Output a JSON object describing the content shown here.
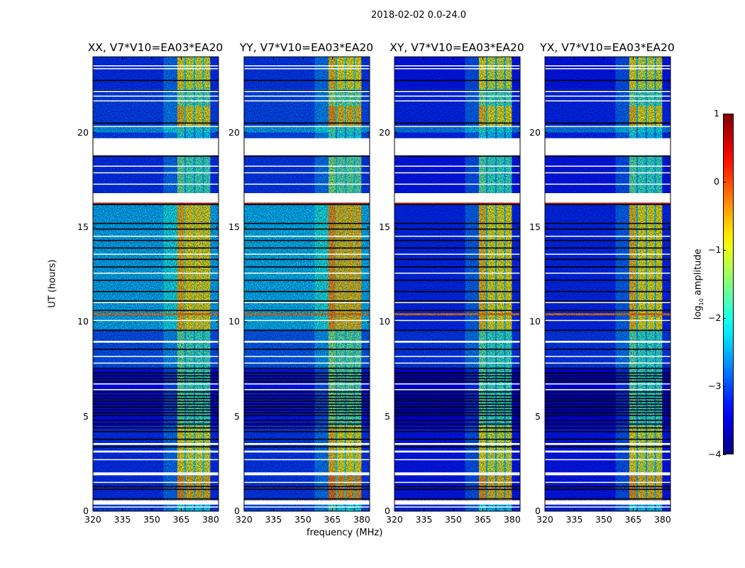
{
  "chart_data": {
    "type": "heatmap",
    "suptitle": "2018-02-02 0.0-24.0",
    "xlabel": "frequency (MHz)",
    "ylabel": "UT (hours)",
    "xlim": [
      320,
      384
    ],
    "ylim": [
      0,
      24
    ],
    "xticks": [
      "320",
      "335",
      "350",
      "365",
      "380"
    ],
    "xtick_values": [
      320,
      335,
      350,
      365,
      380
    ],
    "yticks": [
      "0",
      "5",
      "10",
      "15",
      "20"
    ],
    "ytick_values": [
      0,
      5,
      10,
      15,
      20
    ],
    "colorbar": {
      "label_main": "log",
      "label_sub": "10",
      "label_rest": " amplitude",
      "vmin": -4,
      "vmax": 1,
      "ticks": [
        "1",
        "0",
        "−1",
        "−2",
        "−3",
        "−4"
      ],
      "tick_values": [
        1,
        0,
        -1,
        -2,
        -3,
        -4
      ],
      "colormap": "jet"
    },
    "freq_regions": [
      {
        "f0": 320,
        "f1": 356,
        "kind": "bg"
      },
      {
        "f0": 356,
        "f1": 363,
        "kind": "ramp"
      },
      {
        "f0": 363,
        "f1": 366.6,
        "kind": "band1"
      },
      {
        "f0": 366.6,
        "f1": 367.4,
        "kind": "gap"
      },
      {
        "f0": 367.4,
        "f1": 371.3,
        "kind": "band"
      },
      {
        "f0": 371.3,
        "f1": 372.1,
        "kind": "gap"
      },
      {
        "f0": 372.1,
        "f1": 375.9,
        "kind": "band"
      },
      {
        "f0": 375.9,
        "f1": 376.6,
        "kind": "gap"
      },
      {
        "f0": 376.6,
        "f1": 379.8,
        "kind": "band"
      },
      {
        "f0": 379.8,
        "f1": 384,
        "kind": "bg"
      }
    ],
    "segments": [
      {
        "t0": 22.3,
        "t1": 24,
        "bg": -3.1,
        "band": -1.0
      },
      {
        "t0": 21.4,
        "t1": 22.3,
        "bg": -3.0,
        "band": -1.7
      },
      {
        "t0": 20.3,
        "t1": 21.4,
        "bg": -3.0,
        "band": -0.8
      },
      {
        "t0": 20.0,
        "t1": 20.3,
        "bg": -2.5,
        "band": -2.0
      },
      {
        "t0": 19.7,
        "t1": 20.0,
        "bg": -3.0,
        "band": -2.2
      },
      {
        "t0": 16.8,
        "t1": 18.8,
        "bg": -3.1,
        "band": -1.8
      },
      {
        "t0": 9.6,
        "t1": 16.2,
        "bg": -2.4,
        "band": -0.8,
        "cross_bg": -3.0
      },
      {
        "t0": 7.5,
        "t1": 9.6,
        "bg": -2.9,
        "band": -1.8
      },
      {
        "t0": 4.5,
        "t1": 7.5,
        "bg": -3.3,
        "band": -1.8
      },
      {
        "t0": 2.05,
        "t1": 4.5,
        "bg": -3.1,
        "band": -1.0
      },
      {
        "t0": 0.6,
        "t1": 1.9,
        "bg": -3.1,
        "band": -0.6
      },
      {
        "t0": 0,
        "t1": 0.35,
        "bg": -3.0,
        "band": -2.2
      }
    ],
    "lines": [
      {
        "t": 16.25,
        "level": 0.1
      },
      {
        "t": 10.4,
        "level": -0.3
      }
    ],
    "flagged": [
      [
        19.7,
        18.8
      ],
      [
        16.8,
        16.3
      ],
      [
        2.05,
        1.9
      ],
      [
        0.55,
        0.35
      ],
      [
        23.4,
        23.35
      ],
      [
        22.2,
        22.15
      ],
      [
        21.95,
        21.9
      ],
      [
        21.7,
        21.65
      ],
      [
        20.35,
        20.3
      ],
      [
        18.25,
        18.2
      ],
      [
        17.9,
        17.85
      ],
      [
        17.3,
        17.25
      ],
      [
        14.55,
        14.5
      ],
      [
        13.6,
        13.55
      ],
      [
        12.6,
        12.55
      ],
      [
        11.05,
        11.0
      ],
      [
        10.1,
        10.05
      ],
      [
        9.0,
        8.9
      ],
      [
        8.2,
        8.15
      ],
      [
        7.85,
        7.8
      ],
      [
        6.75,
        6.7
      ],
      [
        6.45,
        6.4
      ],
      [
        3.6,
        3.5
      ],
      [
        3.2,
        3.1
      ],
      [
        2.75,
        2.7
      ],
      [
        1.55,
        1.5
      ],
      [
        0.25,
        0.22
      ],
      [
        23.55,
        23.5
      ]
    ],
    "dropouts": [
      22.75,
      22.2,
      20.5,
      19.6,
      18.75,
      16.75,
      16.2,
      15.2,
      14.9,
      14.3,
      13.9,
      13.3,
      12.9,
      12.2,
      11.6,
      11.1,
      10.6,
      9.55,
      8.55,
      7.55,
      7.3,
      7.15,
      7.0,
      6.85,
      6.3,
      6.1,
      5.95,
      5.8,
      5.65,
      5.5,
      5.35,
      5.2,
      5.05,
      4.8,
      4.6,
      4.4,
      4.2,
      3.8,
      3.4,
      1.3,
      1.15,
      0.65
    ],
    "panels": [
      {
        "title": "XX, V7*V10=EA03*EA20",
        "bg_shift": 0,
        "band_shift": 0,
        "cross": false
      },
      {
        "title": "YY, V7*V10=EA03*EA20",
        "bg_shift": 0.05,
        "band_shift": 0.15,
        "cross": false
      },
      {
        "title": "XY, V7*V10=EA03*EA20",
        "bg_shift": -0.15,
        "band_shift": -0.05,
        "cross": true
      },
      {
        "title": "YX, V7*V10=EA03*EA20",
        "bg_shift": -0.15,
        "band_shift": -0.05,
        "cross": true
      }
    ]
  }
}
